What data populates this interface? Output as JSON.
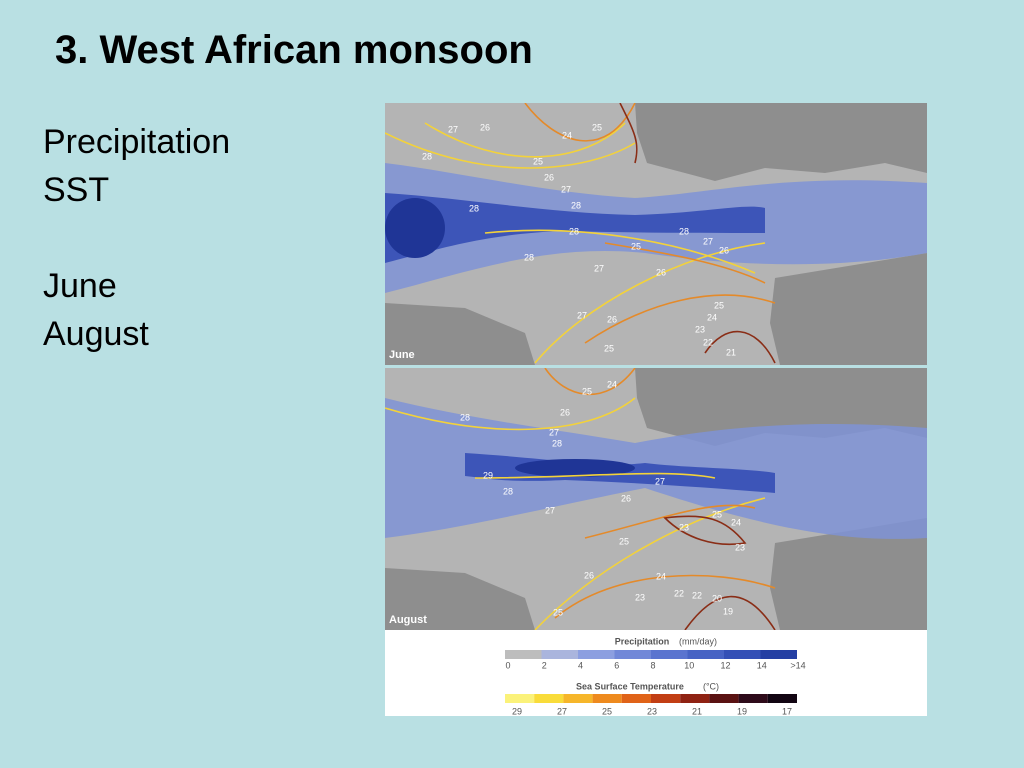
{
  "title": "3. West African monsoon",
  "bullets": [
    "Precipitation",
    "SST",
    "June",
    "August"
  ],
  "figure": {
    "panels": [
      {
        "label": "June",
        "contour_labels": [
          27,
          26,
          24,
          25,
          28,
          25,
          26,
          27,
          28,
          28,
          28,
          25,
          28,
          27,
          26,
          28,
          27,
          26,
          25,
          24,
          27,
          26,
          23,
          22,
          25,
          21
        ]
      },
      {
        "label": "August",
        "contour_labels": [
          24,
          25,
          26,
          28,
          27,
          28,
          29,
          28,
          27,
          26,
          27,
          25,
          24,
          23,
          23,
          25,
          24,
          26,
          23,
          22,
          22,
          20,
          19,
          25
        ]
      }
    ],
    "legend": {
      "precipitation": {
        "title": "Precipitation",
        "unit": "(mm/day)",
        "ticks": [
          0,
          2,
          4,
          6,
          8,
          10,
          12,
          14,
          ">14"
        ]
      },
      "sst": {
        "title": "Sea Surface Temperature",
        "unit": "(°C)",
        "ticks": [
          29,
          27,
          25,
          23,
          21,
          19,
          17
        ]
      }
    }
  }
}
